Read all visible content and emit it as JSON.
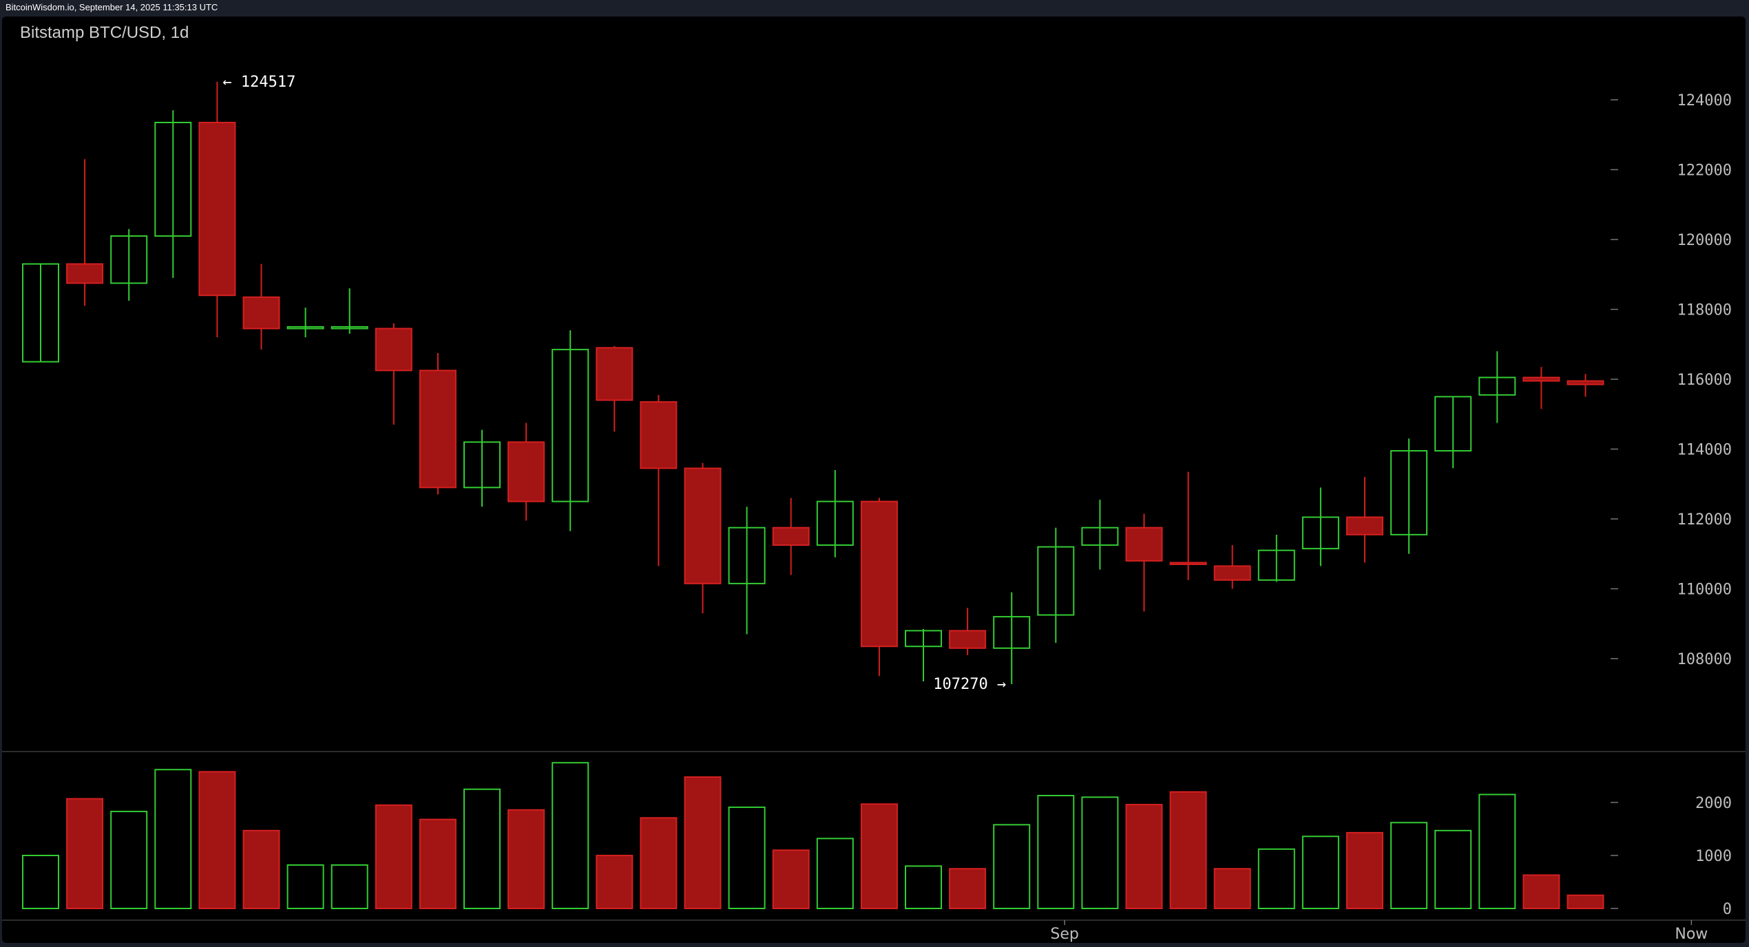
{
  "watermark": "BitcoinWisdom.io, September 14, 2025 11:35:13 UTC",
  "title": "Bitstamp BTC/USD, 1d",
  "colors": {
    "up": "#33cc33",
    "down": "#a31414",
    "down_stroke": "#d42020",
    "background": "#000000",
    "grid": "#3a3a3a",
    "text": "#bdbdbd"
  },
  "chart_data": {
    "type": "candlestick",
    "title": "Bitstamp BTC/USD, 1d",
    "price_axis": {
      "ticks": [
        108000,
        110000,
        112000,
        114000,
        116000,
        118000,
        120000,
        122000,
        124000
      ],
      "range": [
        106000,
        126500
      ]
    },
    "volume_axis": {
      "ticks": [
        0,
        1000,
        2000
      ],
      "range": [
        0,
        2750
      ]
    },
    "x_labels": [
      {
        "index": 23.2,
        "label": "Sep"
      },
      {
        "index": 37.4,
        "label": "Now"
      }
    ],
    "annotations": {
      "high": {
        "label": "← 124517",
        "value": 124517,
        "index": 4
      },
      "low": {
        "label": "107270 →",
        "value": 107270,
        "index": 22
      }
    },
    "candles": [
      {
        "o": 116500,
        "h": 119300,
        "l": 116500,
        "c": 119300,
        "v": 1000
      },
      {
        "o": 119300,
        "h": 122300,
        "l": 118100,
        "c": 118750,
        "v": 2070
      },
      {
        "o": 118750,
        "h": 120300,
        "l": 118250,
        "c": 120100,
        "v": 1830
      },
      {
        "o": 120100,
        "h": 123700,
        "l": 118900,
        "c": 123350,
        "v": 2620
      },
      {
        "o": 123350,
        "h": 124517,
        "l": 117200,
        "c": 118400,
        "v": 2580
      },
      {
        "o": 118350,
        "h": 119300,
        "l": 116850,
        "c": 117450,
        "v": 1470
      },
      {
        "o": 117450,
        "h": 118050,
        "l": 117200,
        "c": 117500,
        "v": 820
      },
      {
        "o": 117450,
        "h": 118600,
        "l": 117300,
        "c": 117500,
        "v": 820
      },
      {
        "o": 117450,
        "h": 117600,
        "l": 114700,
        "c": 116250,
        "v": 1950
      },
      {
        "o": 116250,
        "h": 116750,
        "l": 112700,
        "c": 112900,
        "v": 1680
      },
      {
        "o": 112900,
        "h": 114550,
        "l": 112350,
        "c": 114200,
        "v": 2250
      },
      {
        "o": 114200,
        "h": 114750,
        "l": 111950,
        "c": 112500,
        "v": 1860
      },
      {
        "o": 112500,
        "h": 117400,
        "l": 111650,
        "c": 116850,
        "v": 2750
      },
      {
        "o": 116900,
        "h": 116950,
        "l": 114500,
        "c": 115400,
        "v": 1000
      },
      {
        "o": 115350,
        "h": 115550,
        "l": 110650,
        "c": 113450,
        "v": 1710
      },
      {
        "o": 113450,
        "h": 113600,
        "l": 109300,
        "c": 110150,
        "v": 2480
      },
      {
        "o": 110150,
        "h": 112350,
        "l": 108700,
        "c": 111750,
        "v": 1910
      },
      {
        "o": 111750,
        "h": 112600,
        "l": 110400,
        "c": 111250,
        "v": 1100
      },
      {
        "o": 111250,
        "h": 113400,
        "l": 110900,
        "c": 112500,
        "v": 1320
      },
      {
        "o": 112500,
        "h": 112600,
        "l": 107500,
        "c": 108350,
        "v": 1970
      },
      {
        "o": 108350,
        "h": 108850,
        "l": 107350,
        "c": 108800,
        "v": 800
      },
      {
        "o": 108800,
        "h": 109450,
        "l": 108100,
        "c": 108300,
        "v": 750
      },
      {
        "o": 108300,
        "h": 109900,
        "l": 107270,
        "c": 109200,
        "v": 1580
      },
      {
        "o": 109250,
        "h": 111750,
        "l": 108450,
        "c": 111200,
        "v": 2130
      },
      {
        "o": 111250,
        "h": 112550,
        "l": 110550,
        "c": 111750,
        "v": 2100
      },
      {
        "o": 111750,
        "h": 112150,
        "l": 109350,
        "c": 110800,
        "v": 1960
      },
      {
        "o": 110750,
        "h": 113350,
        "l": 110250,
        "c": 110700,
        "v": 2200
      },
      {
        "o": 110650,
        "h": 111250,
        "l": 110000,
        "c": 110250,
        "v": 750
      },
      {
        "o": 110250,
        "h": 111550,
        "l": 110200,
        "c": 111100,
        "v": 1120
      },
      {
        "o": 111150,
        "h": 112900,
        "l": 110650,
        "c": 112050,
        "v": 1360
      },
      {
        "o": 112050,
        "h": 113200,
        "l": 110750,
        "c": 111550,
        "v": 1430
      },
      {
        "o": 111550,
        "h": 114300,
        "l": 111000,
        "c": 113950,
        "v": 1620
      },
      {
        "o": 113950,
        "h": 115500,
        "l": 113450,
        "c": 115500,
        "v": 1470
      },
      {
        "o": 115550,
        "h": 116800,
        "l": 114750,
        "c": 116050,
        "v": 2150
      },
      {
        "o": 116050,
        "h": 116350,
        "l": 115150,
        "c": 115950,
        "v": 630
      },
      {
        "o": 115950,
        "h": 116150,
        "l": 115500,
        "c": 115850,
        "v": 250
      }
    ]
  }
}
